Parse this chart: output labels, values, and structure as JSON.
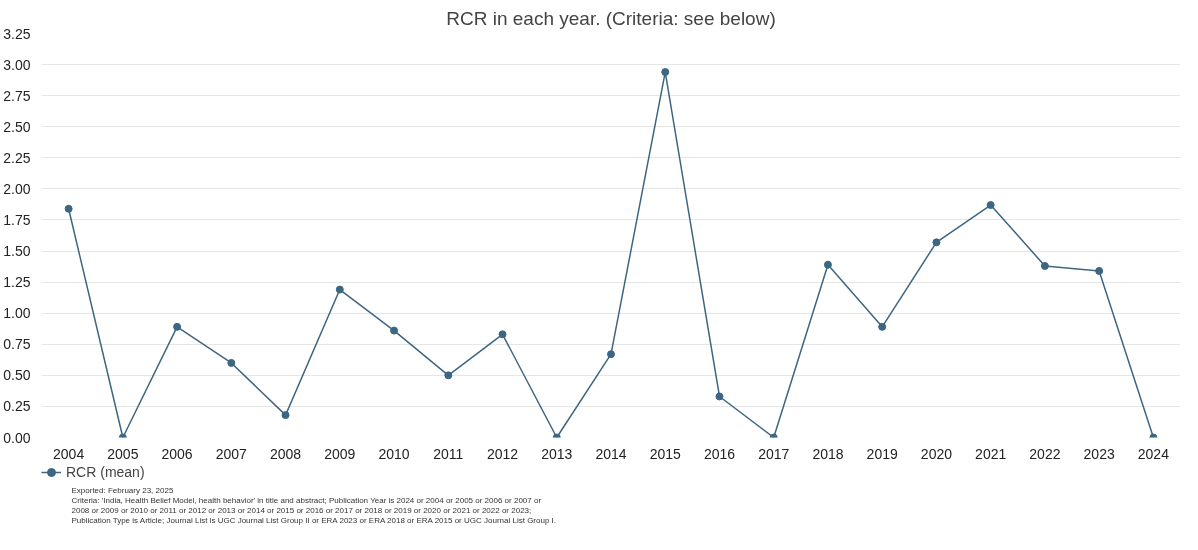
{
  "chart_data": {
    "type": "line",
    "title": "RCR in each year. (Criteria: see below)",
    "categories": [
      "2004",
      "2005",
      "2006",
      "2007",
      "2008",
      "2009",
      "2010",
      "2011",
      "2012",
      "2013",
      "2014",
      "2015",
      "2016",
      "2017",
      "2018",
      "2019",
      "2020",
      "2021",
      "2022",
      "2023",
      "2024"
    ],
    "series": [
      {
        "name": "RCR (mean)",
        "color": "#3d6682",
        "values": [
          1.84,
          0,
          0.89,
          0.6,
          0.18,
          1.19,
          0.86,
          0.5,
          0.83,
          0,
          0.67,
          2.94,
          0.33,
          0,
          1.39,
          0.89,
          1.57,
          1.87,
          1.38,
          1.34,
          0
        ]
      }
    ],
    "ylim": [
      0,
      3.25
    ],
    "yticks": [
      {
        "value": 0,
        "label": "0.00"
      },
      {
        "value": 0.25,
        "label": "0.25"
      },
      {
        "value": 0.5,
        "label": "0.50"
      },
      {
        "value": 0.75,
        "label": "0.75"
      },
      {
        "value": 1,
        "label": "1.00"
      },
      {
        "value": 1.25,
        "label": "1.25"
      },
      {
        "value": 1.5,
        "label": "1.50"
      },
      {
        "value": 1.75,
        "label": "1.75"
      },
      {
        "value": 2,
        "label": "2.00"
      },
      {
        "value": 2.25,
        "label": "2.25"
      },
      {
        "value": 2.5,
        "label": "2.50"
      },
      {
        "value": 2.75,
        "label": "2.75"
      },
      {
        "value": 3,
        "label": "3.00"
      },
      {
        "value": 3.25,
        "label": "3.25"
      }
    ],
    "grid": "y",
    "legend": "bottom left",
    "marker": "circle",
    "line_style": "solid",
    "annotations": [
      "Exported: February 23, 2025",
      "Criteria: 'India, Health Belief Model, health behavior' in title and abstract; Publication Year is 2024 or 2004 or 2005 or 2006 or 2007 or",
      "2008 or 2009 or 2010 or 2011 or 2012 or 2013 or 2014 or 2015 or 2016 or 2017 or 2018 or 2019 or 2020 or 2021 or 2022 or 2023;",
      "Publication Type is Article; Journal List is UGC Journal List Group II or ERA 2023 or ERA 2018 or ERA 2015 or UGC Journal List Group I."
    ]
  }
}
